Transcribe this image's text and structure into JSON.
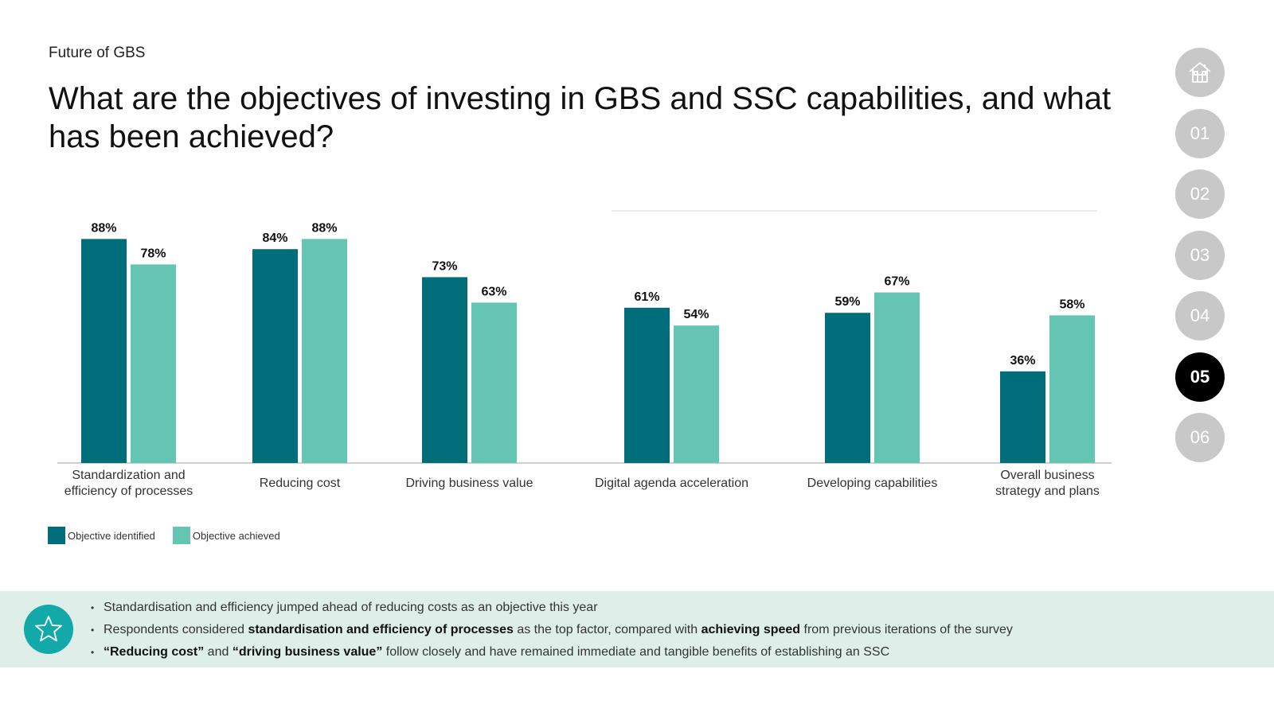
{
  "header": {
    "section": "Future of GBS",
    "title": "What are the objectives of investing in GBS and SSC capabilities, and what has been achieved?"
  },
  "nav": {
    "home_icon": "home-icon",
    "items": [
      "01",
      "02",
      "03",
      "04",
      "05",
      "06"
    ],
    "active": "05"
  },
  "colors": {
    "identified": "#006e7a",
    "achieved": "#64c5b3",
    "panel": "#deeee9",
    "badge": "#12a9a8"
  },
  "chart_data": {
    "type": "bar",
    "title": "",
    "xlabel": "",
    "ylabel": "",
    "ylim": [
      0,
      100
    ],
    "grid": false,
    "legend_position": "bottom-left",
    "categories": [
      [
        "Standardization and",
        "efficiency of processes"
      ],
      [
        "Reducing cost"
      ],
      [
        "Driving business value"
      ],
      [
        "Digital agenda acceleration"
      ],
      [
        "Developing capabilities"
      ],
      [
        "Overall business",
        "strategy and plans"
      ]
    ],
    "series": [
      {
        "name": "Objective identified",
        "values": [
          88,
          84,
          73,
          61,
          59,
          36
        ],
        "labels": [
          "88%",
          "84%",
          "73%",
          "61%",
          "59%",
          "36%"
        ]
      },
      {
        "name": "Objective achieved",
        "values": [
          78,
          88,
          63,
          54,
          67,
          58
        ],
        "labels": [
          "78%",
          "88%",
          "63%",
          "54%",
          "67%",
          "58%"
        ]
      }
    ]
  },
  "legend": {
    "identified_label": "Objective identified",
    "achieved_label": "Objective achieved"
  },
  "insights": {
    "bullet1": "Standardisation and efficiency jumped ahead of reducing costs as an objective this year",
    "bullet2_pre": "Respondents considered ",
    "bullet2_bold1": "standardisation and efficiency of processes",
    "bullet2_mid": " as the top factor, compared with ",
    "bullet2_bold2": "achieving speed",
    "bullet2_post": " from previous iterations of the survey",
    "bullet3_bold1": "“Reducing cost”",
    "bullet3_mid": " and ",
    "bullet3_bold2": "“driving business value”",
    "bullet3_post": " follow closely and have remained immediate and tangible benefits of establishing an SSC",
    "icon": "star-icon"
  }
}
